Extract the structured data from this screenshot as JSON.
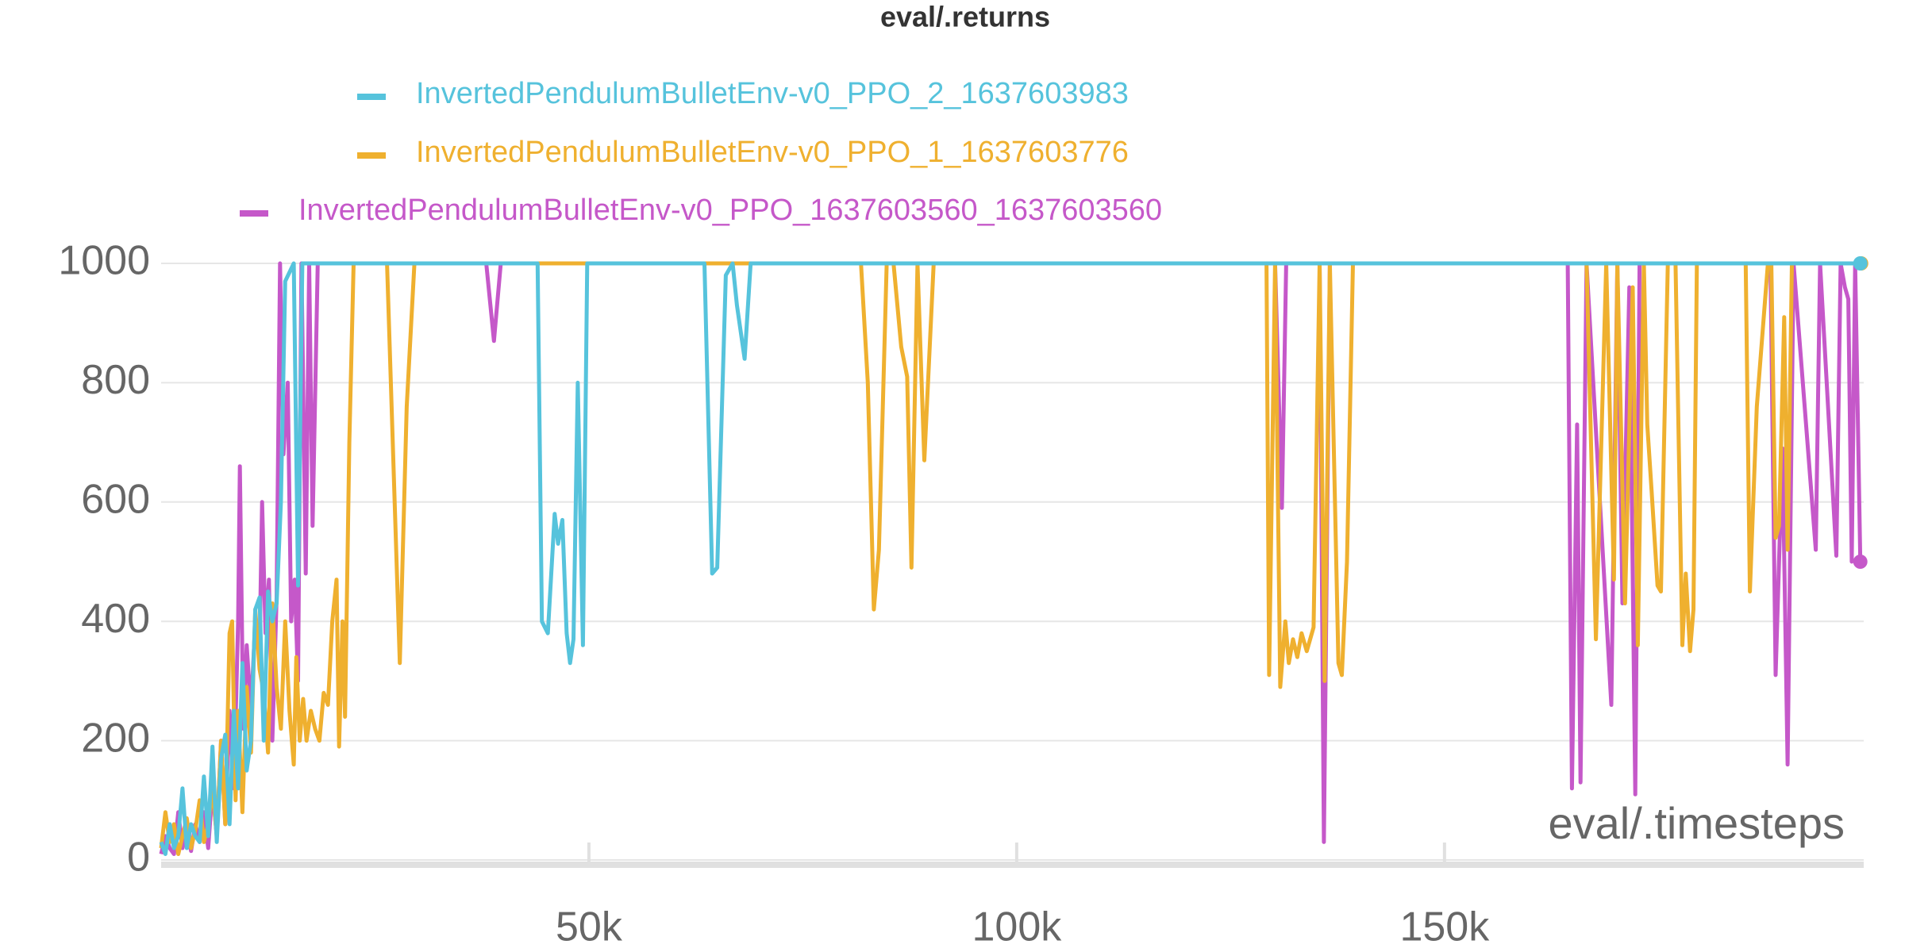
{
  "chart_data": {
    "type": "line",
    "title": "eval/.returns",
    "x_label": "eval/.timesteps",
    "xlim": [
      0,
      199000
    ],
    "ylim": [
      0,
      1000
    ],
    "xticks": [
      {
        "value": 50000,
        "label": "50k"
      },
      {
        "value": 100000,
        "label": "100k"
      },
      {
        "value": 150000,
        "label": "150k"
      }
    ],
    "yticks": [
      0,
      200,
      400,
      600,
      800,
      1000
    ],
    "grid": true,
    "series": [
      {
        "name": "InvertedPendulumBulletEnv-v0_PPO_2_1637603983",
        "color": "#56c3dc",
        "x": [
          0,
          500,
          1000,
          1500,
          2000,
          2500,
          3000,
          3500,
          4000,
          4500,
          5000,
          5500,
          6000,
          6500,
          7000,
          7500,
          8000,
          8500,
          9000,
          9500,
          10000,
          10500,
          11000,
          11500,
          12000,
          12500,
          13000,
          13500,
          14000,
          14500,
          15500,
          16000,
          16500,
          17000,
          44000,
          44500,
          45200,
          46000,
          46400,
          46900,
          47400,
          47800,
          48200,
          48700,
          49300,
          49800,
          50500,
          63500,
          64400,
          65000,
          66000,
          66800,
          67300,
          68200,
          68900,
          69800,
          198600
        ],
        "values": [
          30,
          10,
          60,
          20,
          40,
          120,
          20,
          60,
          40,
          30,
          140,
          40,
          190,
          30,
          170,
          210,
          60,
          250,
          120,
          330,
          150,
          200,
          420,
          440,
          200,
          450,
          400,
          430,
          600,
          970,
          1000,
          460,
          1000,
          1000,
          1000,
          400,
          380,
          580,
          530,
          570,
          380,
          330,
          370,
          800,
          360,
          1000,
          1000,
          1000,
          480,
          490,
          980,
          1000,
          930,
          840,
          1000,
          1000,
          1000
        ]
      },
      {
        "name": "InvertedPendulumBulletEnv-v0_PPO_1_1637603776",
        "color": "#efb02f",
        "x": [
          0,
          500,
          1000,
          1500,
          2000,
          2500,
          3000,
          3500,
          4000,
          4500,
          5000,
          5500,
          6000,
          6500,
          7000,
          7500,
          8000,
          8300,
          8700,
          9000,
          9500,
          10000,
          10500,
          11000,
          11500,
          12000,
          12500,
          13000,
          13500,
          14000,
          14500,
          15000,
          15500,
          15800,
          16200,
          16600,
          17000,
          17500,
          18000,
          18500,
          19000,
          19500,
          20000,
          20500,
          20800,
          21200,
          21500,
          22000,
          22500,
          26400,
          27900,
          28700,
          29600,
          81800,
          82600,
          83300,
          83900,
          84800,
          85600,
          86500,
          87200,
          87700,
          88400,
          89200,
          90300,
          129200,
          129500,
          130200,
          130800,
          131400,
          131800,
          132300,
          132800,
          133300,
          133900,
          134700,
          135400,
          136000,
          136600,
          137600,
          138000,
          138600,
          139300,
          166600,
          167700,
          168900,
          169800,
          170200,
          171100,
          172000,
          172600,
          173300,
          173700,
          174200,
          174900,
          175300,
          176100,
          177000,
          177800,
          178200,
          178700,
          179100,
          179500,
          180000,
          185200,
          185700,
          186500,
          187800,
          188200,
          188700,
          189100,
          189700,
          190100,
          190600,
          198700
        ],
        "values": [
          20,
          80,
          30,
          60,
          10,
          40,
          70,
          20,
          50,
          100,
          30,
          60,
          120,
          40,
          200,
          60,
          380,
          400,
          100,
          250,
          80,
          290,
          180,
          420,
          320,
          280,
          180,
          430,
          290,
          220,
          400,
          250,
          160,
          340,
          200,
          270,
          200,
          250,
          220,
          200,
          280,
          260,
          400,
          470,
          190,
          400,
          240,
          700,
          1000,
          1000,
          330,
          760,
          1000,
          1000,
          800,
          420,
          520,
          1000,
          1000,
          860,
          810,
          490,
          1000,
          670,
          1000,
          1000,
          310,
          1000,
          290,
          400,
          330,
          370,
          340,
          380,
          350,
          390,
          1000,
          300,
          1000,
          330,
          310,
          500,
          1000,
          1000,
          370,
          1000,
          470,
          1000,
          430,
          960,
          360,
          1000,
          730,
          620,
          460,
          450,
          1000,
          1000,
          360,
          480,
          350,
          420,
          1000,
          1000,
          1000,
          450,
          760,
          1000,
          1000,
          540,
          560,
          910,
          520,
          1000,
          1000
        ]
      },
      {
        "name": "InvertedPendulumBulletEnv-v0_PPO_1637603560_1637603560",
        "color": "#c558c9",
        "x": [
          0,
          500,
          1000,
          1500,
          2000,
          2500,
          3000,
          3500,
          4000,
          4500,
          5000,
          5500,
          6000,
          6500,
          7000,
          7500,
          8000,
          8500,
          9000,
          9200,
          9600,
          10000,
          10500,
          11000,
          11500,
          11800,
          12200,
          12600,
          13000,
          13500,
          13900,
          14300,
          14800,
          15200,
          15600,
          16000,
          16400,
          16900,
          17300,
          17700,
          18300,
          38000,
          38900,
          39700,
          130200,
          131000,
          131500,
          135400,
          135900,
          136600,
          164400,
          164900,
          165500,
          165900,
          166600,
          169500,
          170200,
          170800,
          171600,
          172300,
          172800,
          188100,
          188700,
          189500,
          190100,
          190800,
          193400,
          193900,
          195800,
          196300,
          196800,
          197200,
          197600,
          198000,
          198600
        ],
        "values": [
          10,
          40,
          20,
          10,
          80,
          20,
          50,
          15,
          60,
          30,
          80,
          20,
          120,
          40,
          200,
          60,
          250,
          120,
          400,
          660,
          220,
          360,
          250,
          400,
          350,
          600,
          380,
          470,
          200,
          440,
          1000,
          680,
          800,
          400,
          470,
          300,
          1000,
          480,
          1000,
          560,
          1000,
          1000,
          870,
          1000,
          1000,
          590,
          1000,
          1000,
          30,
          1000,
          1000,
          120,
          730,
          130,
          1000,
          260,
          1000,
          430,
          960,
          110,
          1000,
          1000,
          310,
          690,
          160,
          1000,
          520,
          1000,
          510,
          1000,
          960,
          940,
          500,
          1000,
          500
        ]
      }
    ]
  }
}
